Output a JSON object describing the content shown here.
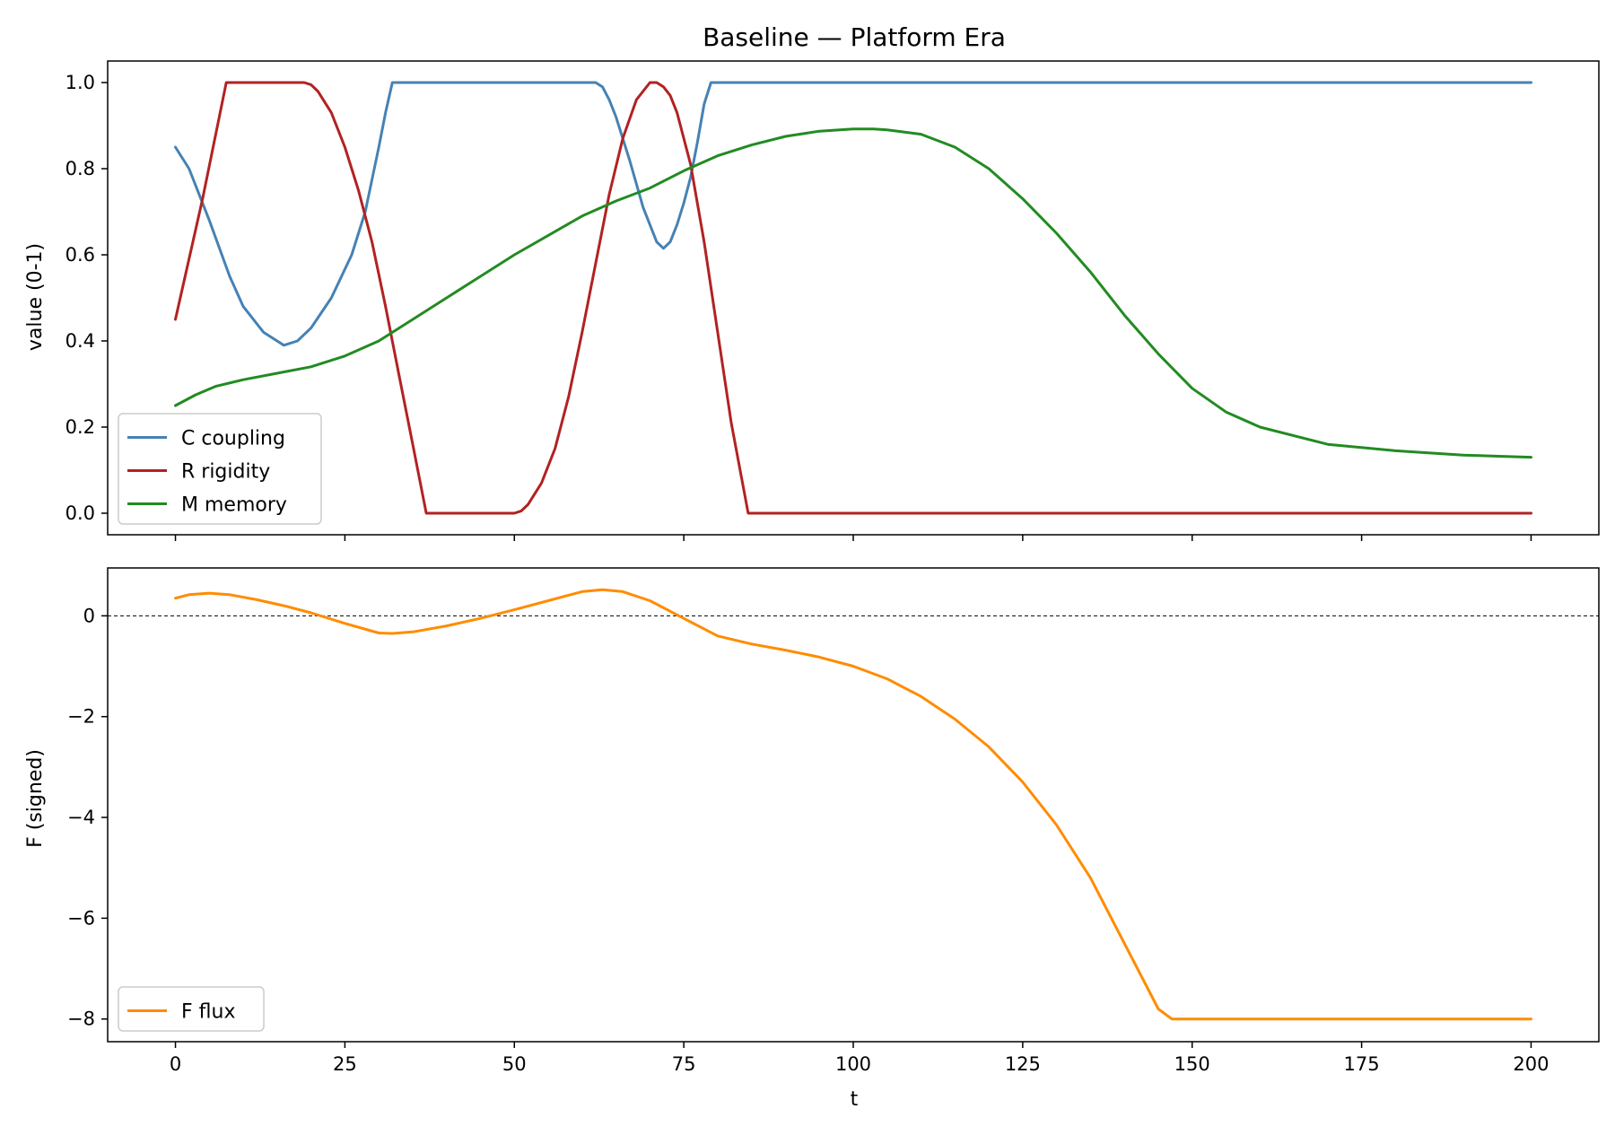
{
  "chart_data": [
    {
      "type": "line",
      "title": "Baseline — Platform Era",
      "xlabel": "",
      "ylabel": "value (0-1)",
      "xlim": [
        -10,
        210
      ],
      "ylim": [
        -0.05,
        1.05
      ],
      "x_ticks": [
        0,
        25,
        50,
        75,
        100,
        125,
        150,
        175,
        200
      ],
      "x_tick_labels": [],
      "y_ticks": [
        0.0,
        0.2,
        0.4,
        0.6,
        0.8,
        1.0
      ],
      "y_tick_labels": [
        "0.0",
        "0.2",
        "0.4",
        "0.6",
        "0.8",
        "1.0"
      ],
      "grid": false,
      "legend_position": "lower-left",
      "series": [
        {
          "name": "C coupling",
          "color": "#4682b4",
          "x": [
            0,
            2,
            5,
            8,
            10,
            13,
            16,
            18,
            20,
            23,
            26,
            28,
            30,
            31,
            32,
            40,
            50,
            60,
            62,
            63,
            64,
            65,
            67,
            69,
            71,
            72,
            73,
            74,
            75,
            76,
            77,
            78,
            79,
            80,
            90,
            100,
            150,
            200
          ],
          "values": [
            0.85,
            0.8,
            0.68,
            0.55,
            0.48,
            0.42,
            0.39,
            0.4,
            0.43,
            0.5,
            0.6,
            0.7,
            0.85,
            0.93,
            1.0,
            1.0,
            1.0,
            1.0,
            1.0,
            0.99,
            0.96,
            0.92,
            0.82,
            0.71,
            0.63,
            0.615,
            0.63,
            0.67,
            0.72,
            0.78,
            0.86,
            0.95,
            1.0,
            1.0,
            1.0,
            1.0,
            1.0,
            1.0
          ]
        },
        {
          "name": "R rigidity",
          "color": "#b22222",
          "x": [
            0,
            4,
            7.5,
            10,
            15,
            19,
            20,
            21,
            23,
            25,
            27,
            29,
            31,
            33,
            35,
            37,
            38,
            45,
            50,
            51,
            52,
            54,
            56,
            58,
            60,
            62,
            64,
            66,
            68,
            70,
            71,
            72,
            73,
            74,
            76,
            78,
            80,
            82,
            84.5,
            85,
            100,
            150,
            200
          ],
          "values": [
            0.45,
            0.73,
            1.0,
            1.0,
            1.0,
            1.0,
            0.995,
            0.98,
            0.93,
            0.85,
            0.75,
            0.63,
            0.48,
            0.32,
            0.16,
            0.0,
            0.0,
            0.0,
            0.0,
            0.005,
            0.02,
            0.07,
            0.15,
            0.27,
            0.42,
            0.58,
            0.74,
            0.87,
            0.96,
            1.0,
            1.0,
            0.99,
            0.97,
            0.93,
            0.81,
            0.63,
            0.42,
            0.21,
            0.0,
            0.0,
            0.0,
            0.0,
            0.0
          ]
        },
        {
          "name": "M memory",
          "color": "#228b22",
          "x": [
            0,
            3,
            6,
            10,
            15,
            20,
            25,
            30,
            35,
            40,
            45,
            50,
            55,
            60,
            65,
            70,
            75,
            80,
            85,
            90,
            95,
            100,
            103,
            105,
            110,
            115,
            120,
            125,
            130,
            135,
            140,
            145,
            150,
            155,
            160,
            170,
            180,
            190,
            200
          ],
          "values": [
            0.25,
            0.275,
            0.295,
            0.31,
            0.325,
            0.34,
            0.365,
            0.4,
            0.45,
            0.5,
            0.55,
            0.6,
            0.645,
            0.69,
            0.725,
            0.755,
            0.795,
            0.83,
            0.855,
            0.875,
            0.887,
            0.892,
            0.892,
            0.89,
            0.88,
            0.85,
            0.8,
            0.73,
            0.65,
            0.56,
            0.46,
            0.37,
            0.29,
            0.235,
            0.2,
            0.16,
            0.145,
            0.135,
            0.13
          ]
        }
      ]
    },
    {
      "type": "line",
      "title": "",
      "xlabel": "t",
      "ylabel": "F (signed)",
      "xlim": [
        -10,
        210
      ],
      "ylim": [
        -8.45,
        0.95
      ],
      "x_ticks": [
        0,
        25,
        50,
        75,
        100,
        125,
        150,
        175,
        200
      ],
      "x_tick_labels": [
        "0",
        "25",
        "50",
        "75",
        "100",
        "125",
        "150",
        "175",
        "200"
      ],
      "y_ticks": [
        -8,
        -6,
        -4,
        -2,
        0
      ],
      "y_tick_labels": [
        "−8",
        "−6",
        "−4",
        "−2",
        "0"
      ],
      "grid": false,
      "reference_line": {
        "y": 0,
        "style": "dashed",
        "color": "#000000"
      },
      "legend_position": "lower-left",
      "series": [
        {
          "name": "F flux",
          "color": "#ff8c00",
          "x": [
            0,
            2,
            5,
            8,
            12,
            16,
            20,
            25,
            30,
            32,
            35,
            40,
            45,
            50,
            55,
            60,
            63,
            66,
            70,
            75,
            80,
            85,
            90,
            95,
            100,
            105,
            110,
            115,
            120,
            125,
            130,
            135,
            140,
            145,
            147,
            150,
            175,
            200
          ],
          "values": [
            0.35,
            0.42,
            0.45,
            0.42,
            0.32,
            0.2,
            0.06,
            -0.15,
            -0.34,
            -0.35,
            -0.32,
            -0.2,
            -0.05,
            0.12,
            0.3,
            0.48,
            0.52,
            0.48,
            0.3,
            -0.05,
            -0.4,
            -0.56,
            -0.68,
            -0.82,
            -1.0,
            -1.25,
            -1.6,
            -2.05,
            -2.6,
            -3.3,
            -4.15,
            -5.2,
            -6.5,
            -7.8,
            -8.0,
            -8.0,
            -8.0,
            -8.0
          ]
        }
      ]
    }
  ]
}
